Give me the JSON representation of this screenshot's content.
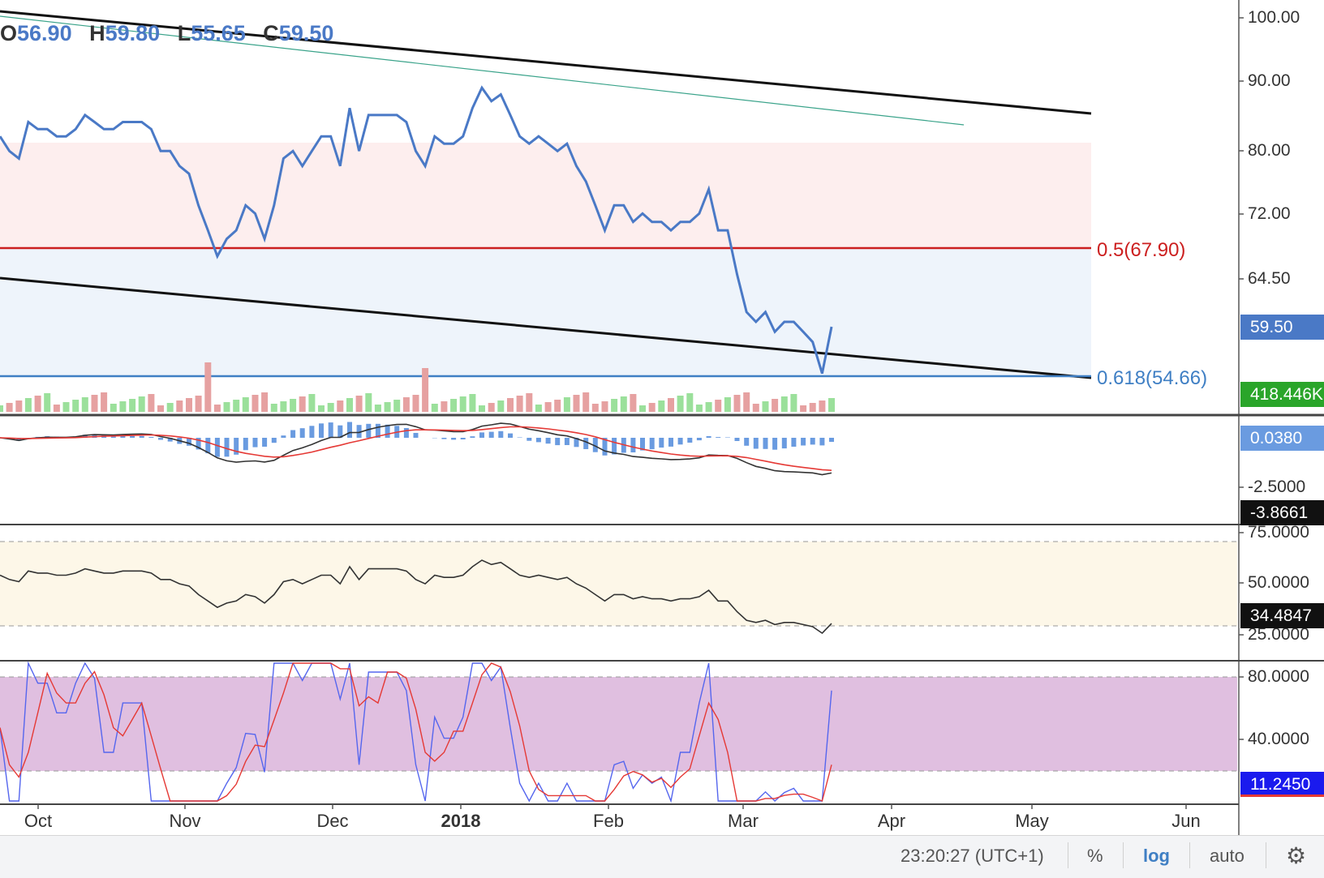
{
  "ohlc": {
    "o_key": "O",
    "o": "56.90",
    "h_key": "H",
    "h": "59.80",
    "l_key": "L",
    "l": "55.65",
    "c_key": "C",
    "c": "59.50"
  },
  "fib_labels": {
    "level_05": "0.5(67.90)",
    "level_0618": "0.618(54.66)"
  },
  "price_axis": [
    "100.00",
    "90.00",
    "80.00",
    "72.00",
    "64.50"
  ],
  "macd_axis": [
    "-2.5000"
  ],
  "rsi_axis": [
    "75.0000",
    "50.0000",
    "25.0000"
  ],
  "stoch_axis": [
    "80.0000",
    "40.0000"
  ],
  "badges": {
    "price": "59.50",
    "volume": "418.446K",
    "macd_hist": "0.0380",
    "macd_signal": "-3.8661",
    "rsi": "34.4847",
    "stoch": "11.2450"
  },
  "time_axis": [
    "Oct",
    "Nov",
    "Dec",
    "2018",
    "Feb",
    "Mar",
    "Apr",
    "May",
    "Jun"
  ],
  "bottom_bar": {
    "clock": "23:20:27 (UTC+1)",
    "percent": "%",
    "log": "log",
    "auto": "auto"
  },
  "colors": {
    "price_line": "#4a79c6",
    "fib_05": "#cc1f1f",
    "fib_0618": "#3f7fc4",
    "macd_line": "#333333",
    "signal_line": "#e53935",
    "hist": "#6a9be0",
    "volume_up": "#9be09b",
    "volume_down": "#e6a1a1",
    "stoch_k": "#5566ee",
    "stoch_d": "#e53935",
    "rsi_band": "#fdf7e8",
    "stoch_band": "#e0bfe0"
  },
  "chart_data": {
    "type": "line",
    "x_ticks": [
      "Oct",
      "Nov",
      "Dec",
      "2018",
      "Feb",
      "Mar",
      "Apr",
      "May",
      "Jun"
    ],
    "price": [
      82,
      80,
      79,
      84,
      83,
      83,
      82,
      82,
      83,
      85,
      84,
      83,
      83,
      84,
      84,
      84,
      83,
      80,
      80,
      78,
      77,
      73,
      70,
      67,
      69,
      70,
      73,
      72,
      69,
      73,
      79,
      80,
      78,
      80,
      82,
      82,
      78,
      86,
      80,
      85,
      85,
      85,
      85,
      84,
      80,
      78,
      82,
      81,
      81,
      82,
      86,
      89,
      87,
      88,
      85,
      82,
      81,
      82,
      81,
      80,
      81,
      78,
      76,
      73,
      70,
      73,
      73,
      71,
      72,
      71,
      71,
      70,
      71,
      71,
      72,
      75,
      70,
      70,
      65,
      61,
      60,
      61,
      59,
      60,
      60,
      59,
      58,
      55,
      59.5
    ],
    "fib_levels": [
      {
        "label": "0.5",
        "value": 67.9
      },
      {
        "label": "0.618",
        "value": 54.66
      }
    ],
    "ylim": [
      50,
      100
    ],
    "log_scale": true
  },
  "footer_icons": [
    "gear-icon"
  ]
}
